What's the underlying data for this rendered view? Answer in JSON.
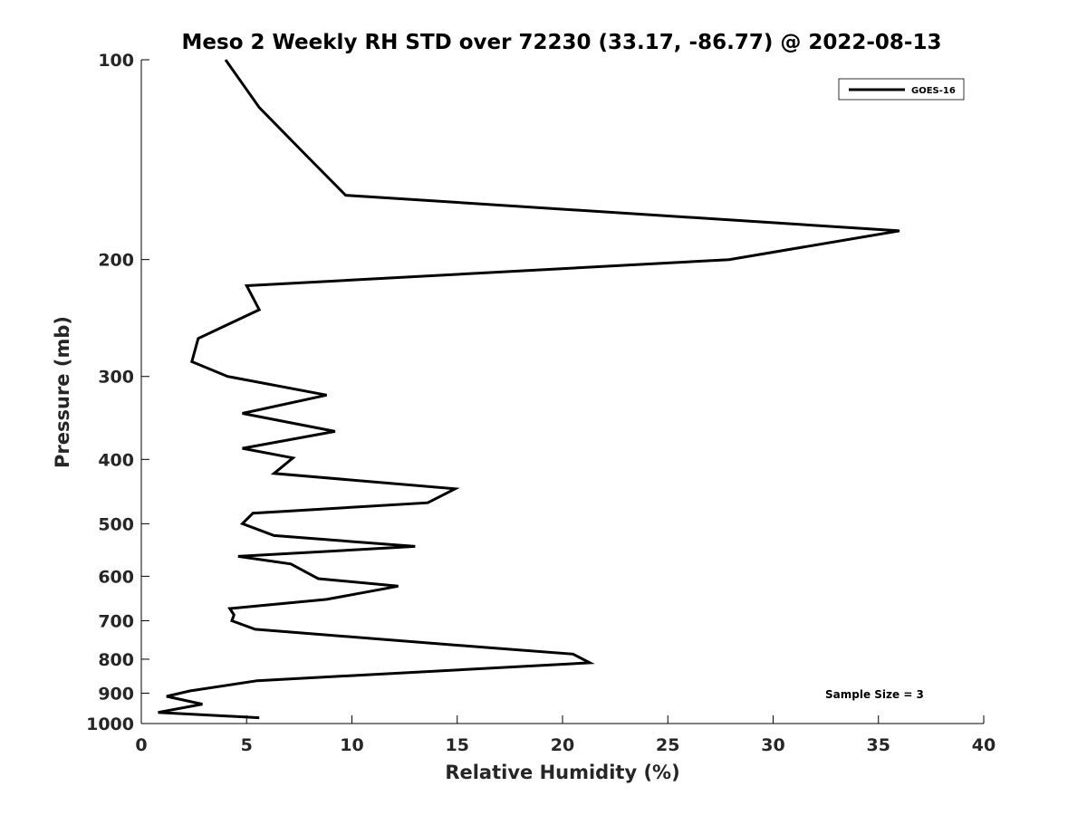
{
  "chart_data": {
    "type": "line",
    "title": "Meso 2 Weekly RH STD over 72230 (33.17, -86.77) @ 2022-08-13",
    "xlabel": "Relative Humidity (%)",
    "ylabel": "Pressure (mb)",
    "xlim": [
      0,
      40
    ],
    "ylim": [
      100,
      1000
    ],
    "yscale": "log",
    "y_reversed": true,
    "grid": false,
    "x_ticks": [
      0,
      5,
      10,
      15,
      20,
      25,
      30,
      35,
      40
    ],
    "x_tick_labels": [
      "0",
      "5",
      "10",
      "15",
      "20",
      "25",
      "30",
      "35",
      "40"
    ],
    "y_ticks": [
      100,
      200,
      300,
      400,
      500,
      600,
      700,
      800,
      900,
      1000
    ],
    "y_tick_labels": [
      "100",
      "200",
      "300",
      "400",
      "500",
      "600",
      "700",
      "800",
      "900",
      "1000"
    ],
    "legend": {
      "position": "top-right",
      "entries": [
        "GOES-16"
      ]
    },
    "annotation": "Sample Size = 3",
    "series": [
      {
        "name": "GOES-16",
        "color": "#000000",
        "x": [
          4.0,
          5.6,
          7.7,
          9.7,
          36.0,
          27.9,
          5.0,
          5.6,
          2.7,
          2.4,
          4.1,
          8.8,
          4.8,
          9.2,
          4.8,
          7.2,
          6.3,
          14.9,
          13.6,
          5.3,
          4.8,
          6.3,
          13.0,
          4.6,
          7.1,
          8.4,
          12.2,
          8.8,
          4.2,
          4.4,
          4.3,
          5.4,
          16.8,
          20.5,
          21.3,
          5.5,
          2.3,
          1.2,
          2.9,
          0.8,
          5.6
        ],
        "y": [
          100,
          118,
          138,
          160,
          181,
          200,
          219,
          238,
          263,
          285,
          300,
          320,
          341,
          363,
          385,
          398,
          420,
          443,
          465,
          482,
          500,
          521,
          541,
          560,
          575,
          605,
          621,
          650,
          671,
          686,
          700,
          721,
          770,
          786,
          810,
          862,
          893,
          910,
          935,
          962,
          980
        ]
      }
    ]
  }
}
